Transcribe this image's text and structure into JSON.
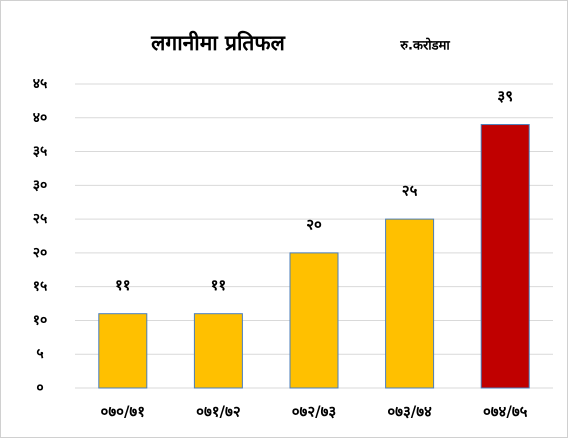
{
  "chart_data": {
    "type": "bar",
    "title": "लगानीमा प्रतिफल",
    "subtitle": "रु.करोडमा",
    "categories": [
      "०७०/७१",
      "०७१/७२",
      "०७२/७३",
      "०७३/७४",
      "०७४/७५"
    ],
    "values": [
      11,
      11,
      20,
      25,
      39
    ],
    "value_labels": [
      "११",
      "११",
      "२०",
      "२५",
      "३९"
    ],
    "colors": [
      "#ffc000",
      "#ffc000",
      "#ffc000",
      "#ffc000",
      "#c00000"
    ],
    "edgecolor": "#4a7ebb",
    "ylim": [
      0,
      45
    ],
    "yticks": [
      {
        "value": 0,
        "label": "०"
      },
      {
        "value": 5,
        "label": "५"
      },
      {
        "value": 10,
        "label": "१०"
      },
      {
        "value": 15,
        "label": "१५"
      },
      {
        "value": 20,
        "label": "२०"
      },
      {
        "value": 25,
        "label": "२५"
      },
      {
        "value": 30,
        "label": "३०"
      },
      {
        "value": 35,
        "label": "३५"
      },
      {
        "value": 40,
        "label": "४०"
      },
      {
        "value": 45,
        "label": "४५"
      }
    ],
    "grid": true
  }
}
